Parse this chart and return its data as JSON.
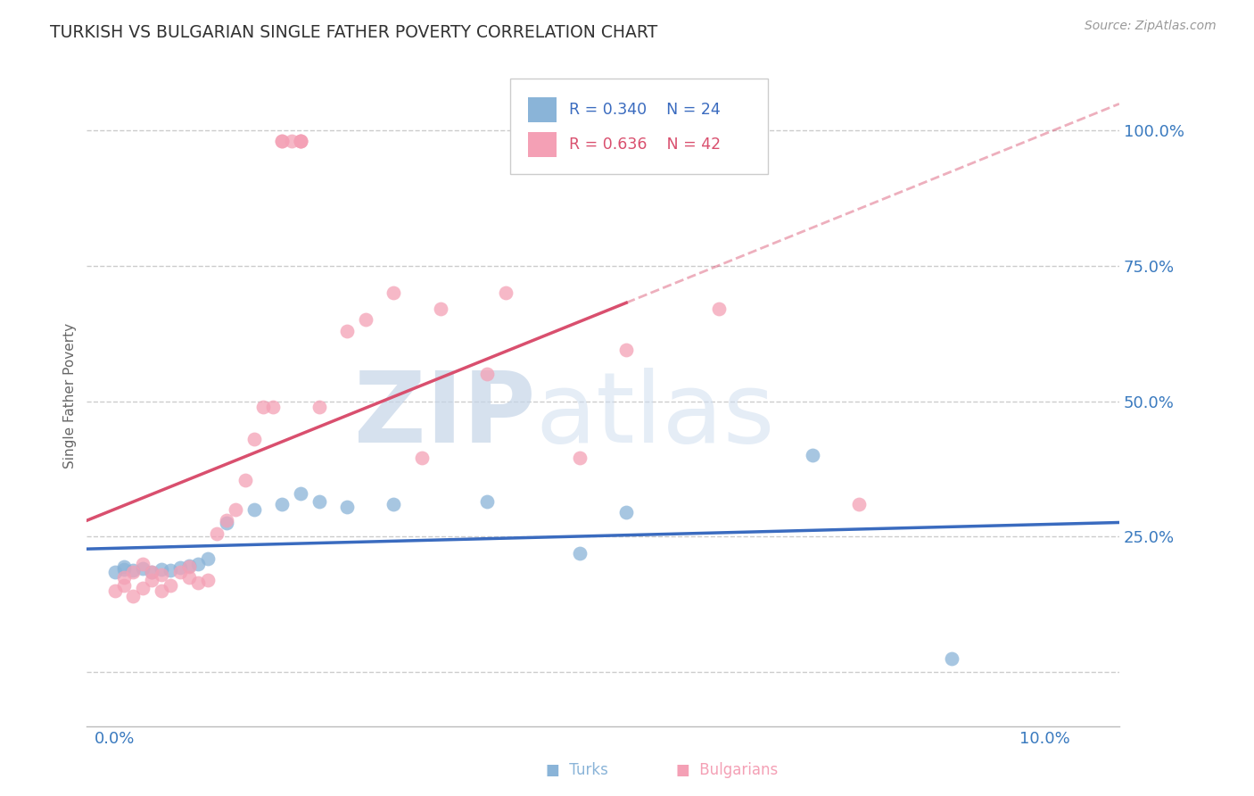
{
  "title": "TURKISH VS BULGARIAN SINGLE FATHER POVERTY CORRELATION CHART",
  "source": "Source: ZipAtlas.com",
  "ylabel_label": "Single Father Poverty",
  "turk_R": 0.34,
  "turk_N": 24,
  "bulg_R": 0.636,
  "bulg_N": 42,
  "turk_color": "#8ab4d8",
  "bulg_color": "#f4a0b5",
  "turk_line_color": "#3a6bbf",
  "bulg_line_color": "#d94f6e",
  "xlim": [
    -0.003,
    0.108
  ],
  "ylim": [
    -0.1,
    1.12
  ],
  "grid_color": "#cccccc",
  "background_color": "#ffffff",
  "title_color": "#333333",
  "axis_label_color": "#666666",
  "tick_label_color": "#3a7abf",
  "source_color": "#999999",
  "watermark_zip": "ZIP",
  "watermark_atlas": "atlas",
  "turks_x": [
    0.0,
    0.001,
    0.001,
    0.002,
    0.003,
    0.004,
    0.005,
    0.006,
    0.007,
    0.008,
    0.009,
    0.01,
    0.012,
    0.015,
    0.018,
    0.02,
    0.022,
    0.025,
    0.03,
    0.04,
    0.05,
    0.055,
    0.075,
    0.09
  ],
  "turks_y": [
    0.185,
    0.19,
    0.195,
    0.188,
    0.192,
    0.185,
    0.19,
    0.188,
    0.193,
    0.196,
    0.2,
    0.21,
    0.275,
    0.3,
    0.31,
    0.33,
    0.315,
    0.305,
    0.31,
    0.315,
    0.22,
    0.295,
    0.4,
    0.025
  ],
  "bulgs_x": [
    0.0,
    0.001,
    0.001,
    0.002,
    0.002,
    0.003,
    0.003,
    0.004,
    0.004,
    0.005,
    0.005,
    0.006,
    0.007,
    0.008,
    0.008,
    0.009,
    0.01,
    0.011,
    0.012,
    0.013,
    0.014,
    0.015,
    0.016,
    0.017,
    0.018,
    0.018,
    0.019,
    0.02,
    0.02,
    0.02,
    0.022,
    0.025,
    0.027,
    0.03,
    0.033,
    0.035,
    0.04,
    0.042,
    0.05,
    0.055,
    0.065,
    0.08
  ],
  "bulgs_y": [
    0.15,
    0.16,
    0.175,
    0.14,
    0.185,
    0.155,
    0.2,
    0.17,
    0.185,
    0.15,
    0.18,
    0.16,
    0.185,
    0.195,
    0.175,
    0.165,
    0.17,
    0.255,
    0.28,
    0.3,
    0.355,
    0.43,
    0.49,
    0.49,
    0.98,
    0.98,
    0.98,
    0.98,
    0.98,
    0.98,
    0.49,
    0.63,
    0.65,
    0.7,
    0.395,
    0.67,
    0.55,
    0.7,
    0.395,
    0.595,
    0.67,
    0.31
  ]
}
